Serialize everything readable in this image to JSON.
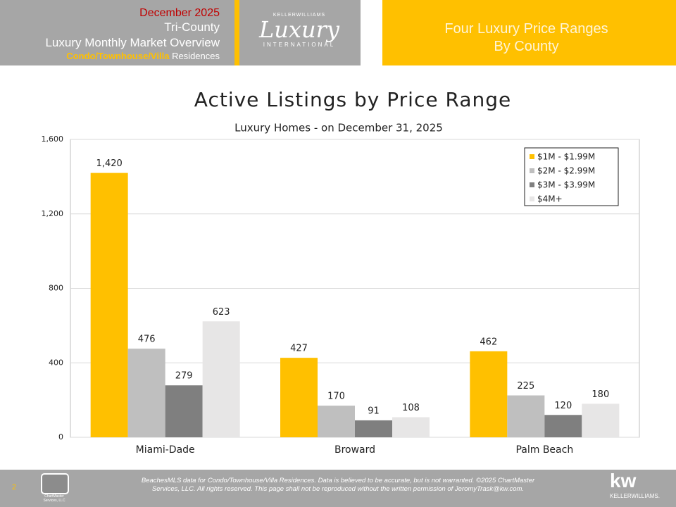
{
  "header": {
    "date": "December 2025",
    "region": "Tri-County",
    "report": "Luxury Monthly Market Overview",
    "property_type": "Condo/Townhouse/Villa",
    "property_suffix": "Residences",
    "logo_top": "KELLERWILLIAMS",
    "logo_main": "Luxury",
    "logo_bottom": "INTERNATIONAL",
    "section_title": [
      "Four Luxury Price Ranges",
      "By County"
    ]
  },
  "chart_data": {
    "type": "bar",
    "title": "Active Listings by Price Range",
    "subtitle": "Luxury Homes - on December 31, 2025",
    "categories": [
      "Miami-Dade",
      "Broward",
      "Palm Beach"
    ],
    "series": [
      {
        "name": "$1M - $1.99M",
        "color": "#ffc000",
        "values": [
          1420,
          427,
          462
        ],
        "value_labels": [
          "1,420",
          "427",
          "462"
        ]
      },
      {
        "name": "$2M - $2.99M",
        "color": "#bfbfbf",
        "values": [
          476,
          170,
          225
        ]
      },
      {
        "name": "$3M - $3.99M",
        "color": "#7f7f7f",
        "values": [
          279,
          91,
          120
        ]
      },
      {
        "name": "$4M+",
        "color": "#e7e6e6",
        "values": [
          623,
          108,
          180
        ]
      }
    ],
    "ylim": [
      0,
      1600
    ],
    "yticks": [
      0,
      400,
      800,
      {
        "value": 1200,
        "label": "1,200"
      },
      {
        "value": 1600,
        "label": "1,600"
      }
    ],
    "grid": true,
    "legend": "top-right"
  },
  "footer": {
    "page": "2",
    "lines": [
      "BeachesMLS data for Condo/Townhouse/Villa Residences.  Data is believed to be accurate, but is not warranted.  ©2025 ChartMaster",
      "Services, LLC.  All rights reserved. This page shall not be reproduced without the written permission of JeromyTrask@kw.com."
    ],
    "cm_logo": [
      "ChartMaster",
      "Services, LLC"
    ],
    "kw_logo": "kw",
    "kw_name": "KELLERWILLIAMS."
  }
}
